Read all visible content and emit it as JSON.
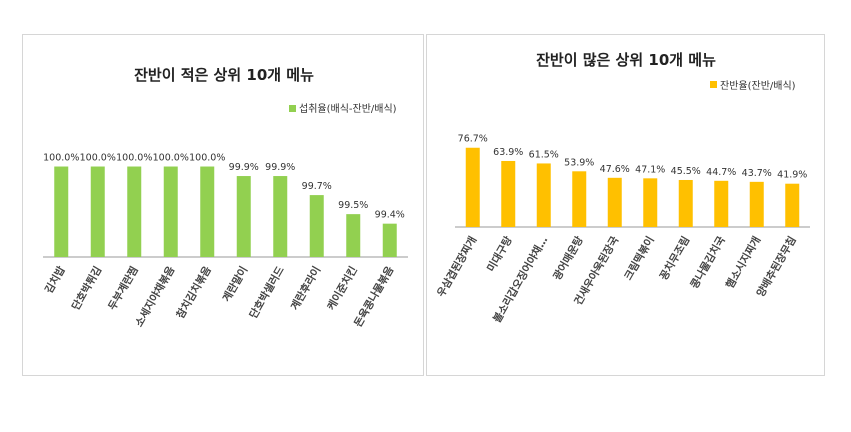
{
  "chart_data": [
    {
      "type": "bar",
      "title": "잔반이 적은 상위 10개 메뉴",
      "legend": "섭취율(배식-잔반/배식)",
      "legend_position": "top-right",
      "color": "#92d050",
      "categories": [
        "김치밥",
        "단호박튀김",
        "두부계란찜",
        "소세지야채볶음",
        "참치김치볶음",
        "계란말이",
        "단호박샐러드",
        "계란후라이",
        "케이준치킨",
        "돈육콩나물볶음"
      ],
      "values": [
        100.0,
        100.0,
        100.0,
        100.0,
        100.0,
        99.9,
        99.9,
        99.7,
        99.5,
        99.4
      ],
      "value_labels": [
        "100.0%",
        "100.0%",
        "100.0%",
        "100.0%",
        "100.0%",
        "99.9%",
        "99.9%",
        "99.7%",
        "99.5%",
        "99.4%"
      ],
      "ylim": [
        99.05,
        100.1
      ],
      "grid": false
    },
    {
      "type": "bar",
      "title": "잔반이 많은 상위 10개 메뉴",
      "legend": "잔반율(잔반/배식)",
      "legend_position": "top-right",
      "color": "#ffc000",
      "categories": [
        "우삼겹된장찌개",
        "미대구탕",
        "볼소리갑오징어야채…",
        "광어매운탕",
        "건새우아욱된장국",
        "크림떡볶이",
        "꽁치무조림",
        "콩나물김치국",
        "햄소시지찌개",
        "양배추된장무침"
      ],
      "values": [
        76.7,
        63.9,
        61.5,
        53.9,
        47.6,
        47.1,
        45.5,
        44.7,
        43.7,
        41.9
      ],
      "value_labels": [
        "76.7%",
        "63.9%",
        "61.5%",
        "53.9%",
        "47.6%",
        "47.1%",
        "45.5%",
        "44.7%",
        "43.7%",
        "41.9%"
      ],
      "ylim": [
        0,
        90
      ],
      "grid": false
    }
  ]
}
